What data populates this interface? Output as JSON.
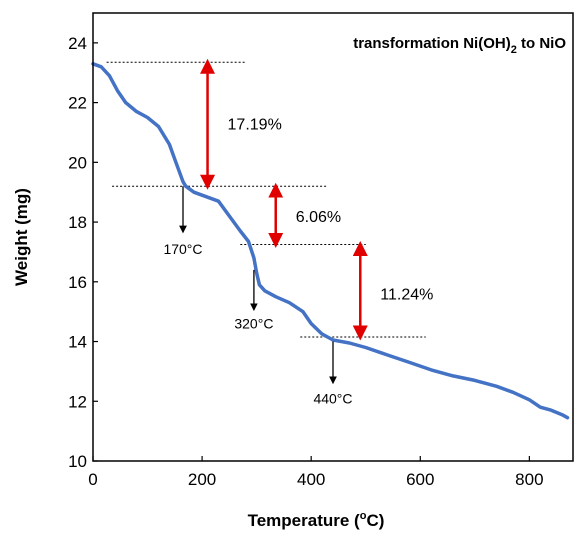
{
  "chart_data": {
    "type": "line",
    "title_parts": [
      "transformation Ni(OH)",
      "2",
      " to NiO"
    ],
    "xlabel_parts": [
      "Temperature (",
      "o",
      "C)"
    ],
    "ylabel": "Weight (mg)",
    "xlim": [
      0,
      880
    ],
    "ylim": [
      10,
      25
    ],
    "xticks": [
      0,
      200,
      400,
      600,
      800
    ],
    "yticks": [
      10,
      12,
      14,
      16,
      18,
      20,
      22,
      24
    ],
    "grid": false,
    "line_color": "#4472c4",
    "arrow_color": "#e00000",
    "series": [
      {
        "x": [
          0,
          15,
          30,
          45,
          60,
          80,
          100,
          120,
          140,
          150,
          160,
          165,
          170,
          185,
          200,
          230,
          250,
          270,
          285,
          295,
          300,
          305,
          315,
          335,
          360,
          385,
          400,
          420,
          435,
          440,
          470,
          500,
          540,
          580,
          620,
          660,
          700,
          740,
          770,
          800,
          820,
          840,
          860,
          870
        ],
        "y": [
          23.3,
          23.2,
          22.9,
          22.4,
          22.0,
          21.7,
          21.5,
          21.2,
          20.6,
          20.1,
          19.6,
          19.35,
          19.2,
          19.0,
          18.9,
          18.7,
          18.2,
          17.7,
          17.35,
          16.8,
          16.3,
          15.9,
          15.7,
          15.5,
          15.3,
          15.0,
          14.6,
          14.25,
          14.1,
          14.05,
          13.95,
          13.8,
          13.55,
          13.3,
          13.05,
          12.85,
          12.7,
          12.5,
          12.3,
          12.05,
          11.8,
          11.7,
          11.55,
          11.45
        ]
      }
    ],
    "reference_lines": [
      {
        "y": 23.35,
        "x": [
          25,
          280
        ]
      },
      {
        "y": 19.2,
        "x": [
          35,
          430
        ]
      },
      {
        "y": 17.25,
        "x": [
          270,
          500
        ]
      },
      {
        "y": 14.15,
        "x": [
          380,
          610
        ]
      }
    ],
    "mass_loss_annotations": [
      {
        "label": "17.19%",
        "x": 210,
        "y_top": 23.35,
        "y_bottom": 19.2,
        "label_y": 21.3
      },
      {
        "label": "6.06%",
        "x": 335,
        "y_top": 19.2,
        "y_bottom": 17.25,
        "label_y": 18.2
      },
      {
        "label": "11.24%",
        "x": 490,
        "y_top": 17.25,
        "y_bottom": 14.15,
        "label_y": 15.6
      }
    ],
    "temperature_annotations": [
      {
        "label": "170°C",
        "x": 165,
        "y_from": 19.2,
        "y_to": 17.75,
        "label_y": 17.1
      },
      {
        "label": "320°C",
        "x": 295,
        "y_from": 16.4,
        "y_to": 15.15,
        "label_y": 14.6
      },
      {
        "label": "440°C",
        "x": 440,
        "y_from": 14.0,
        "y_to": 12.7,
        "label_y": 12.1
      }
    ]
  }
}
